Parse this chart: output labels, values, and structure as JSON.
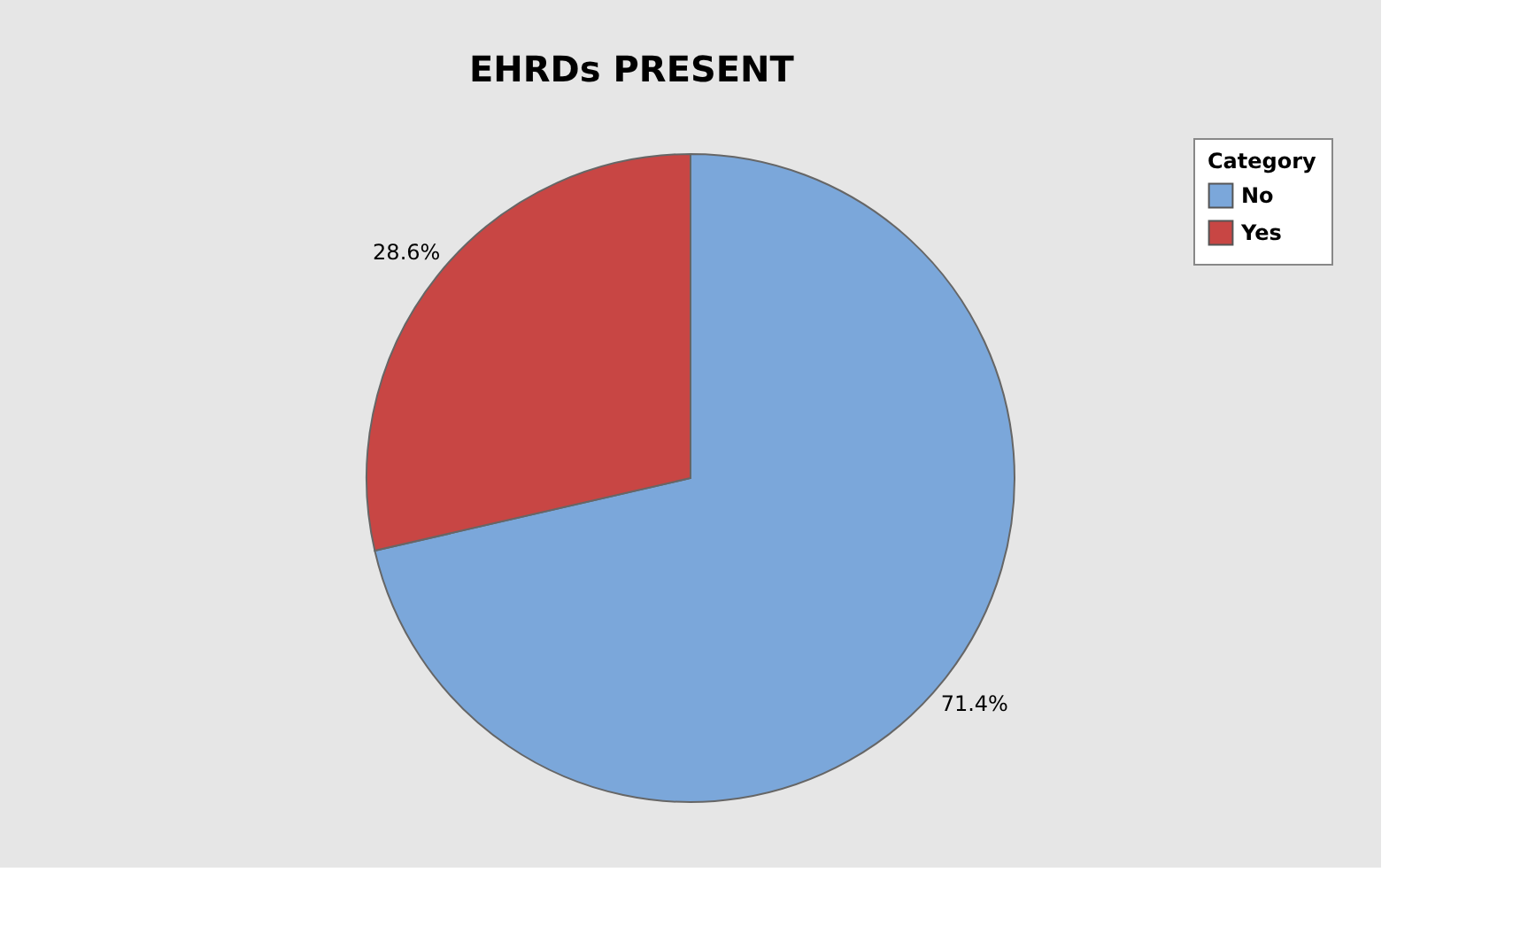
{
  "chart_data": {
    "type": "pie",
    "title": "EHRDs PRESENT",
    "legend_title": "Category",
    "categories": [
      "No",
      "Yes"
    ],
    "values": [
      71.4,
      28.6
    ],
    "colors": [
      "#7ba7da",
      "#c84644"
    ],
    "value_labels": [
      "71.4%",
      "28.6%"
    ],
    "legend": "top right"
  }
}
